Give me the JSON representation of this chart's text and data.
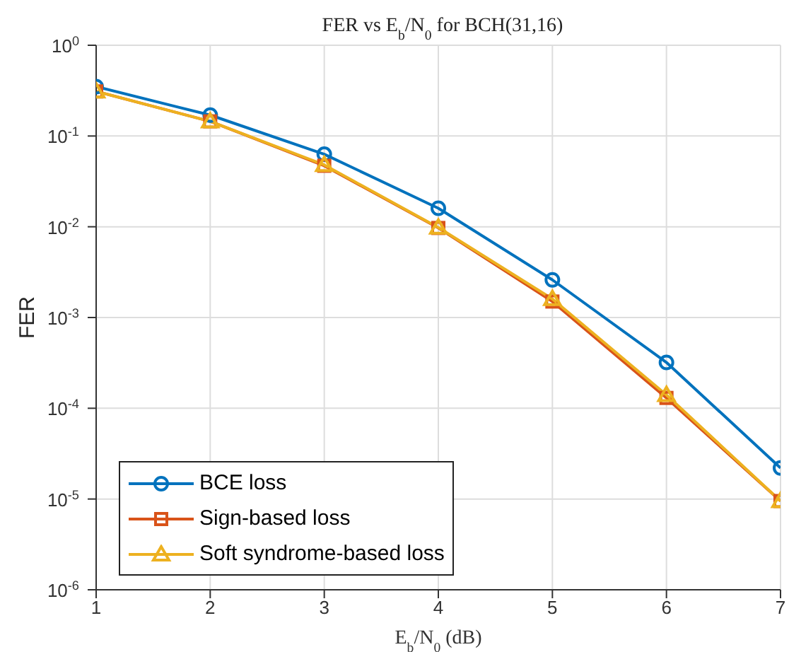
{
  "chart_data": {
    "type": "line",
    "title": "FER vs E$_{b}$/N$_{0}$ for BCH(31,16)",
    "xlabel": "E$_{b}$/N$_{0}$ (dB)",
    "ylabel": "FER",
    "x": [
      1,
      2,
      3,
      4,
      5,
      6,
      7
    ],
    "series": [
      {
        "name": "BCE loss",
        "color": "#0072bd",
        "marker": "circle",
        "values": [
          0.35,
          0.17,
          0.063,
          0.016,
          0.0026,
          0.00032,
          2.2e-05
        ]
      },
      {
        "name": "Sign-based loss",
        "color": "#d95319",
        "marker": "square",
        "values": [
          0.31,
          0.145,
          0.047,
          0.0097,
          0.0015,
          0.00013,
          9.5e-06
        ]
      },
      {
        "name": "Soft syndrome-based loss",
        "color": "#edb120",
        "marker": "triangle",
        "values": [
          0.31,
          0.145,
          0.048,
          0.0098,
          0.0016,
          0.00014,
          9.5e-06
        ]
      }
    ],
    "xlim": [
      1,
      7
    ],
    "xticks": [
      1,
      2,
      3,
      4,
      5,
      6,
      7
    ],
    "ylim": [
      1e-06,
      1
    ],
    "yticks": [
      {
        "value": 1e-06,
        "label": "10$^{-6}$"
      },
      {
        "value": 1e-05,
        "label": "10$^{-5}$"
      },
      {
        "value": 0.0001,
        "label": "10$^{-4}$"
      },
      {
        "value": 0.001,
        "label": "10$^{-3}$"
      },
      {
        "value": 0.01,
        "label": "10$^{-2}$"
      },
      {
        "value": 0.1,
        "label": "10$^{-1}$"
      },
      {
        "value": 1,
        "label": "10$^{0}$"
      }
    ],
    "log": true,
    "grid": true,
    "legend": "bottom left",
    "line_style": "solid"
  }
}
